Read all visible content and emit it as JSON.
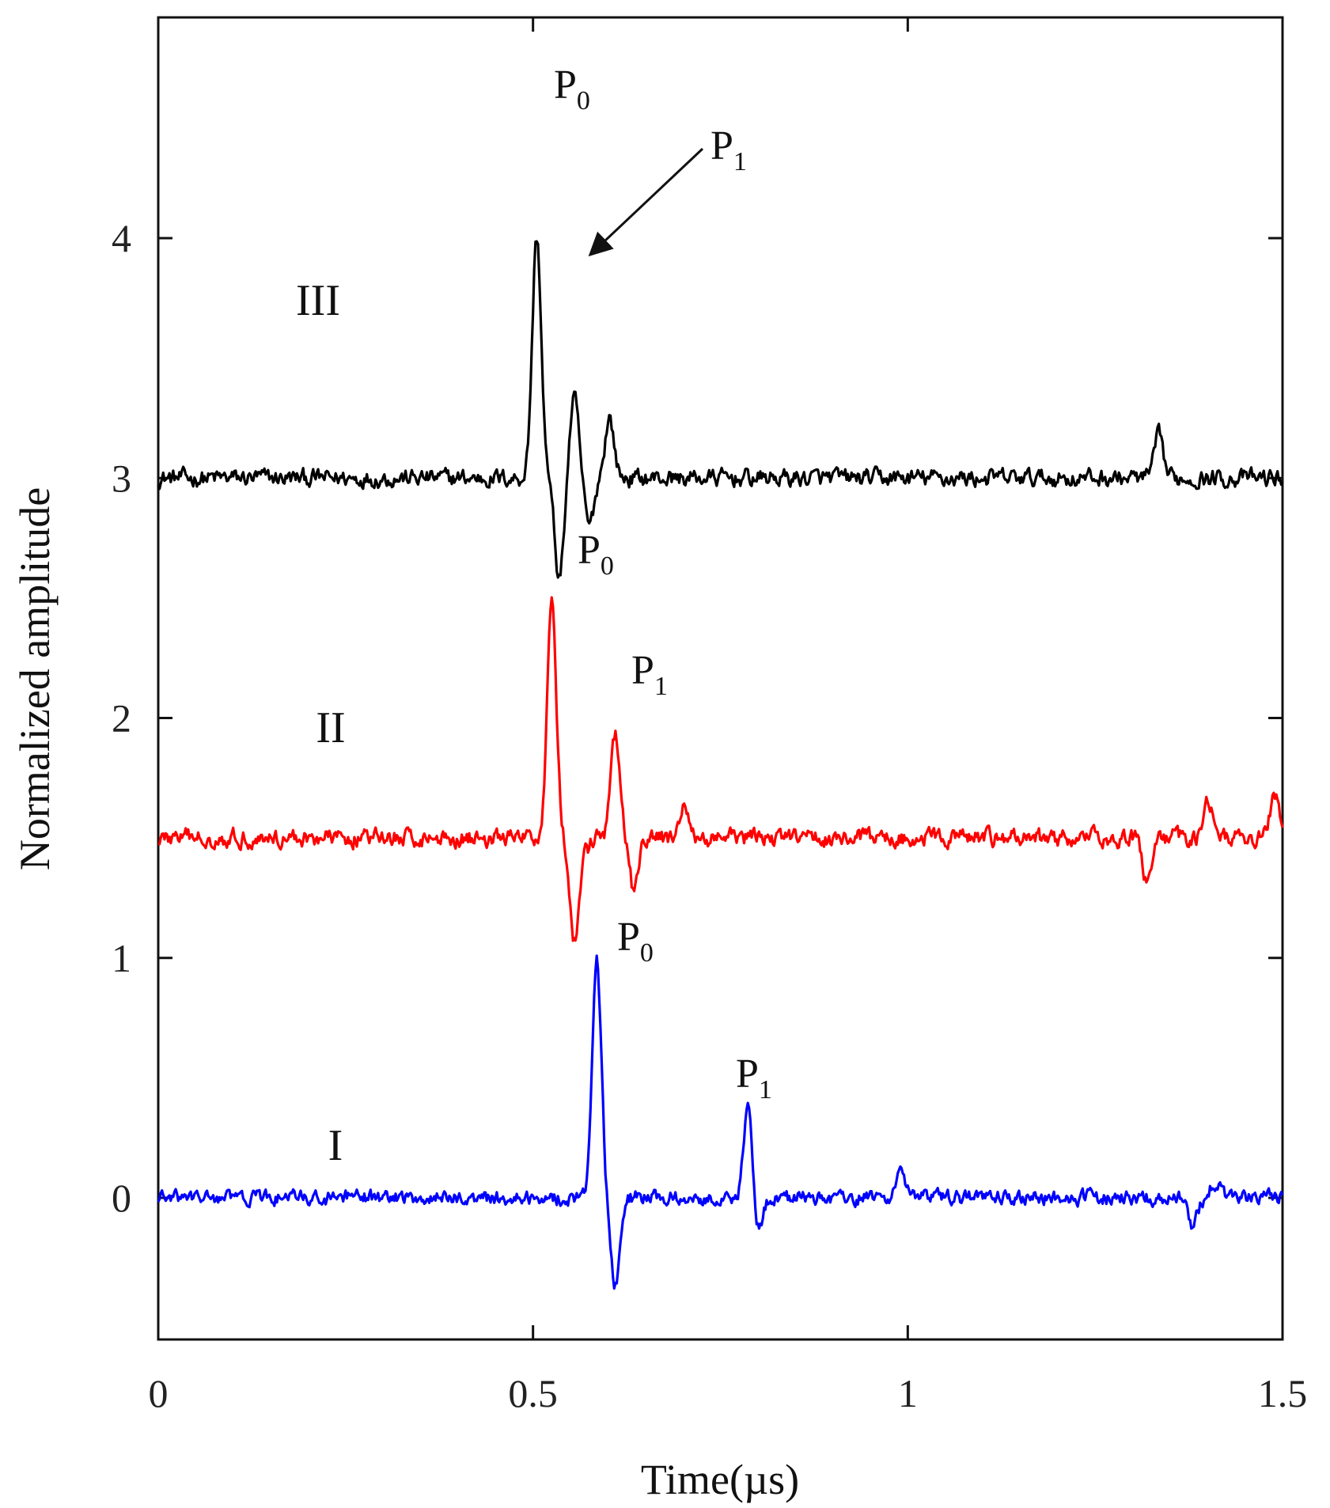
{
  "chart_data": {
    "type": "line",
    "xlabel": "Time(µs)",
    "ylabel": "Normalized amplitude",
    "xlim": [
      0,
      1.5
    ],
    "ylim": [
      -0.5,
      4.2
    ],
    "x_ticks": [
      "0",
      "0.5",
      "1",
      "1.5"
    ],
    "y_ticks": [
      "0",
      "1",
      "2",
      "3",
      "4"
    ],
    "grid": false,
    "series": [
      {
        "name": "III",
        "color": "#000000",
        "offset": 3.0,
        "peaks": [
          {
            "x": 0.505,
            "y": 4.0
          },
          {
            "x": 0.535,
            "y": 2.58
          },
          {
            "x": 0.555,
            "y": 3.33
          },
          {
            "x": 0.575,
            "y": 2.8
          },
          {
            "x": 0.602,
            "y": 3.25
          },
          {
            "x": 1.335,
            "y": 3.17
          }
        ],
        "noise": 0.03
      },
      {
        "name": "II",
        "color": "#ff0000",
        "offset": 1.5,
        "peaks": [
          {
            "x": 0.525,
            "y": 2.5
          },
          {
            "x": 0.555,
            "y": 1.06
          },
          {
            "x": 0.57,
            "y": 1.45
          },
          {
            "x": 0.61,
            "y": 1.92
          },
          {
            "x": 0.635,
            "y": 1.27
          },
          {
            "x": 0.7,
            "y": 1.62
          },
          {
            "x": 1.32,
            "y": 1.31
          },
          {
            "x": 1.4,
            "y": 1.68
          },
          {
            "x": 1.49,
            "y": 1.69
          }
        ],
        "noise": 0.03
      },
      {
        "name": "I",
        "color": "#0000ff",
        "offset": 0.0,
        "peaks": [
          {
            "x": 0.585,
            "y": 1.0
          },
          {
            "x": 0.61,
            "y": -0.36
          },
          {
            "x": 0.787,
            "y": 0.37
          },
          {
            "x": 0.8,
            "y": -0.14
          },
          {
            "x": 0.99,
            "y": 0.13
          },
          {
            "x": 1.38,
            "y": -0.12
          },
          {
            "x": 1.41,
            "y": 0.07
          }
        ],
        "noise": 0.025
      }
    ],
    "annotations": [
      {
        "main": "P",
        "sub": "0",
        "series": "III"
      },
      {
        "main": "P",
        "sub": "1",
        "series": "III",
        "arrow": true
      },
      {
        "main": "P",
        "sub": "0",
        "series": "II"
      },
      {
        "main": "P",
        "sub": "1",
        "series": "II"
      },
      {
        "main": "P",
        "sub": "0",
        "series": "I"
      },
      {
        "main": "P",
        "sub": "1",
        "series": "I"
      }
    ]
  }
}
